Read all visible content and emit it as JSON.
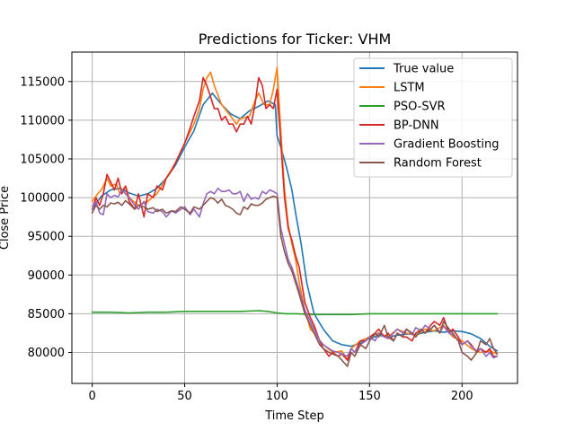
{
  "chart_data": {
    "type": "line",
    "title": "Predictions for Ticker: VHM",
    "xlabel": "Time Step",
    "ylabel": "Close Price",
    "xlim": [
      -11,
      230
    ],
    "ylim": [
      76000,
      118800
    ],
    "xticks": [
      0,
      50,
      100,
      150,
      200
    ],
    "yticks": [
      80000,
      85000,
      90000,
      95000,
      100000,
      105000,
      110000,
      115000
    ],
    "grid": true,
    "legend_position": "top-right",
    "series": [
      {
        "name": "True value",
        "color": "#1f77b4",
        "x": [
          0,
          5,
          10,
          15,
          20,
          25,
          30,
          35,
          40,
          45,
          50,
          55,
          60,
          65,
          70,
          75,
          80,
          85,
          90,
          95,
          99,
          100,
          102,
          105,
          108,
          110,
          113,
          116,
          120,
          125,
          130,
          135,
          140,
          145,
          150,
          155,
          160,
          165,
          170,
          175,
          180,
          185,
          190,
          195,
          200,
          205,
          210,
          215,
          219
        ],
        "y": [
          98500,
          100200,
          101000,
          101200,
          100600,
          100200,
          100500,
          101200,
          102500,
          104200,
          106500,
          108600,
          112000,
          113500,
          112000,
          110800,
          110200,
          111200,
          111800,
          112500,
          112000,
          108000,
          106500,
          104000,
          101000,
          98000,
          94000,
          89000,
          85000,
          83000,
          81500,
          81000,
          80800,
          81200,
          81800,
          82200,
          82000,
          82200,
          82400,
          82300,
          82600,
          82800,
          82600,
          82800,
          82700,
          82400,
          81800,
          80800,
          80200
        ]
      },
      {
        "name": "LSTM",
        "color": "#ff7f0e",
        "x": [
          0,
          3,
          5,
          8,
          10,
          13,
          15,
          18,
          20,
          25,
          30,
          35,
          40,
          45,
          50,
          55,
          58,
          60,
          62,
          64,
          66,
          70,
          75,
          78,
          80,
          85,
          88,
          90,
          93,
          96,
          98,
          100,
          102,
          104,
          106,
          108,
          110,
          112,
          115,
          118,
          120,
          125,
          130,
          135,
          138,
          140,
          145,
          150,
          155,
          160,
          165,
          170,
          175,
          180,
          185,
          190,
          195,
          200,
          205,
          210,
          215,
          219
        ],
        "y": [
          99500,
          100500,
          101000,
          102500,
          101500,
          101800,
          100500,
          101500,
          100000,
          99000,
          99500,
          100500,
          102500,
          104500,
          107000,
          109500,
          111500,
          114000,
          115500,
          116200,
          114500,
          112000,
          110500,
          109500,
          110200,
          110500,
          112500,
          113500,
          112000,
          112000,
          114000,
          116800,
          108500,
          101000,
          96500,
          94000,
          92000,
          89000,
          85500,
          83000,
          82500,
          81000,
          80000,
          80200,
          79000,
          80500,
          81500,
          82000,
          82500,
          82000,
          83000,
          82500,
          82200,
          83000,
          82800,
          83500,
          82000,
          81500,
          80500,
          80000,
          80200,
          79800
        ]
      },
      {
        "name": "PSO-SVR",
        "color": "#2ca02c",
        "x": [
          0,
          10,
          20,
          30,
          40,
          50,
          60,
          70,
          80,
          90,
          95,
          100,
          105,
          110,
          120,
          130,
          140,
          150,
          160,
          170,
          180,
          190,
          200,
          210,
          219
        ],
        "y": [
          85200,
          85200,
          85100,
          85200,
          85200,
          85300,
          85300,
          85300,
          85300,
          85400,
          85300,
          85100,
          85000,
          85000,
          84900,
          84900,
          84900,
          85000,
          85000,
          85000,
          85000,
          85000,
          85000,
          85000,
          85000
        ]
      },
      {
        "name": "BP-DNN",
        "color": "#d62728",
        "x": [
          0,
          2,
          4,
          6,
          8,
          10,
          12,
          14,
          16,
          18,
          20,
          23,
          25,
          28,
          30,
          33,
          35,
          38,
          40,
          43,
          45,
          48,
          50,
          53,
          55,
          58,
          60,
          62,
          64,
          66,
          68,
          70,
          72,
          74,
          76,
          78,
          80,
          82,
          84,
          86,
          88,
          90,
          92,
          94,
          96,
          98,
          100,
          102,
          104,
          106,
          108,
          110,
          112,
          115,
          118,
          120,
          123,
          125,
          128,
          130,
          133,
          135,
          138,
          140,
          142,
          145,
          148,
          150,
          153,
          155,
          158,
          160,
          163,
          165,
          168,
          170,
          173,
          175,
          178,
          180,
          183,
          185,
          188,
          190,
          193,
          195,
          198,
          200,
          203,
          205,
          208,
          210,
          213,
          215,
          217,
          219
        ],
        "y": [
          98500,
          100000,
          99000,
          100500,
          103000,
          102000,
          101000,
          102500,
          100500,
          101500,
          99500,
          98500,
          100500,
          97500,
          100500,
          100000,
          101500,
          101000,
          102500,
          103500,
          104500,
          106000,
          107000,
          109000,
          110500,
          112500,
          115500,
          114500,
          113000,
          111500,
          111500,
          110000,
          110500,
          109500,
          109500,
          108500,
          109500,
          109500,
          110500,
          109500,
          112000,
          115500,
          114500,
          111500,
          112000,
          111500,
          114000,
          107000,
          100000,
          96000,
          94500,
          92500,
          91000,
          86500,
          84500,
          83500,
          81500,
          80500,
          79500,
          80000,
          79500,
          79800,
          79000,
          80500,
          80000,
          81500,
          81500,
          82000,
          82500,
          83000,
          82000,
          82500,
          81500,
          82500,
          82000,
          82000,
          81500,
          82500,
          83000,
          82500,
          83500,
          84000,
          83500,
          84500,
          82500,
          83000,
          82000,
          81000,
          81500,
          81000,
          80000,
          80500,
          80000,
          80500,
          79500,
          79500
        ]
      },
      {
        "name": "Gradient Boosting",
        "color": "#9467bd",
        "x": [
          0,
          2,
          4,
          6,
          8,
          10,
          12,
          14,
          16,
          18,
          20,
          23,
          25,
          28,
          30,
          33,
          35,
          38,
          40,
          43,
          45,
          48,
          50,
          53,
          55,
          58,
          60,
          62,
          64,
          66,
          68,
          70,
          72,
          74,
          76,
          78,
          80,
          82,
          84,
          86,
          88,
          90,
          92,
          94,
          96,
          98,
          100,
          102,
          104,
          106,
          108,
          110,
          112,
          115,
          118,
          120,
          123,
          125,
          128,
          130,
          133,
          135,
          138,
          140,
          142,
          145,
          148,
          150,
          153,
          155,
          158,
          160,
          163,
          165,
          168,
          170,
          173,
          175,
          178,
          180,
          183,
          185,
          188,
          190,
          193,
          195,
          198,
          200,
          203,
          205,
          208,
          210,
          213,
          215,
          217,
          219
        ],
        "y": [
          98500,
          99500,
          98000,
          97800,
          100500,
          100000,
          100300,
          100100,
          101000,
          100500,
          100000,
          99000,
          98500,
          99500,
          98200,
          98000,
          98500,
          98200,
          97500,
          98300,
          98000,
          98500,
          98800,
          97800,
          98500,
          97500,
          99200,
          100500,
          100800,
          100500,
          101200,
          100800,
          100800,
          101000,
          100500,
          100500,
          100800,
          99500,
          100500,
          99800,
          100000,
          99800,
          100800,
          100500,
          101000,
          100800,
          100500,
          96000,
          94000,
          92000,
          91000,
          89500,
          88000,
          85500,
          84000,
          83000,
          81500,
          81000,
          80500,
          80200,
          80000,
          79800,
          79500,
          80500,
          80000,
          81000,
          81500,
          82000,
          81500,
          82500,
          82000,
          81800,
          82500,
          83000,
          82500,
          83000,
          82300,
          83200,
          82800,
          83500,
          83000,
          83500,
          82600,
          83400,
          82500,
          82300,
          81500,
          81000,
          81500,
          80800,
          80200,
          80500,
          79500,
          80000,
          79300,
          79500
        ]
      },
      {
        "name": "Random Forest",
        "color": "#8c564b",
        "x": [
          0,
          2,
          4,
          6,
          8,
          10,
          12,
          14,
          16,
          18,
          20,
          23,
          25,
          28,
          30,
          33,
          35,
          38,
          40,
          43,
          45,
          48,
          50,
          53,
          55,
          58,
          60,
          62,
          64,
          66,
          68,
          70,
          72,
          74,
          76,
          78,
          80,
          82,
          84,
          86,
          88,
          90,
          92,
          94,
          96,
          98,
          100,
          102,
          104,
          106,
          108,
          110,
          112,
          115,
          118,
          120,
          123,
          125,
          128,
          130,
          133,
          135,
          138,
          140,
          142,
          145,
          148,
          150,
          153,
          155,
          158,
          160,
          163,
          165,
          168,
          170,
          173,
          175,
          178,
          180,
          183,
          185,
          188,
          190,
          193,
          195,
          198,
          200,
          203,
          205,
          208,
          210,
          213,
          215,
          217,
          219
        ],
        "y": [
          98000,
          99000,
          98500,
          99000,
          98800,
          99300,
          99200,
          99400,
          99000,
          99600,
          99200,
          98500,
          99000,
          98800,
          98500,
          98700,
          98200,
          98500,
          98000,
          98300,
          98200,
          98800,
          98500,
          98000,
          98800,
          98500,
          99000,
          99500,
          100000,
          99800,
          99300,
          99800,
          99000,
          98800,
          98500,
          98000,
          97800,
          98800,
          98500,
          99200,
          99000,
          99000,
          99300,
          99800,
          100000,
          100200,
          100000,
          95000,
          93000,
          91500,
          90500,
          89000,
          87500,
          85000,
          83500,
          82500,
          81000,
          80500,
          80000,
          79800,
          79500,
          79000,
          78200,
          80000,
          79500,
          81000,
          80500,
          81500,
          82500,
          82000,
          83500,
          82000,
          81500,
          82500,
          82000,
          83000,
          82500,
          82000,
          83000,
          82500,
          83000,
          83500,
          82500,
          84000,
          83000,
          82500,
          81500,
          80000,
          79500,
          79000,
          80000,
          81500,
          81000,
          81800,
          80500,
          79800
        ]
      }
    ]
  }
}
